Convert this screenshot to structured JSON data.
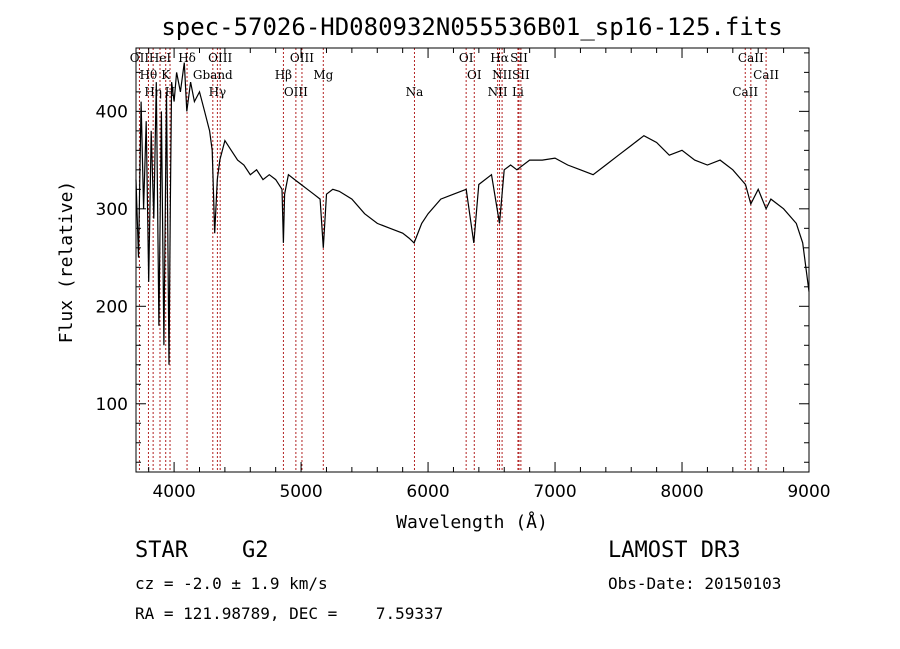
{
  "chart_data": {
    "type": "line",
    "title": "spec-57026-HD080932N055536B01_sp16-125.fits",
    "xlabel": "Wavelength (Å)",
    "ylabel": "Flux (relative)",
    "xlim": [
      3700,
      9000
    ],
    "ylim": [
      30,
      465
    ],
    "xticks": [
      4000,
      5000,
      6000,
      7000,
      8000,
      9000
    ],
    "yticks": [
      100,
      200,
      300,
      400
    ],
    "grid": false,
    "legend": "none",
    "series": [
      {
        "name": "flux",
        "x": [
          3700,
          3720,
          3740,
          3760,
          3780,
          3800,
          3820,
          3840,
          3860,
          3880,
          3900,
          3920,
          3940,
          3960,
          3970,
          3980,
          4000,
          4020,
          4050,
          4080,
          4100,
          4130,
          4160,
          4200,
          4240,
          4280,
          4300,
          4320,
          4340,
          4360,
          4400,
          4450,
          4500,
          4550,
          4600,
          4650,
          4700,
          4750,
          4800,
          4850,
          4861,
          4870,
          4900,
          4950,
          5000,
          5050,
          5100,
          5150,
          5175,
          5200,
          5250,
          5300,
          5400,
          5500,
          5600,
          5700,
          5800,
          5850,
          5890,
          5950,
          6000,
          6100,
          6200,
          6300,
          6360,
          6400,
          6500,
          6563,
          6600,
          6650,
          6700,
          6800,
          6900,
          7000,
          7100,
          7200,
          7300,
          7400,
          7500,
          7600,
          7700,
          7800,
          7900,
          8000,
          8100,
          8200,
          8300,
          8400,
          8500,
          8542,
          8600,
          8662,
          8700,
          8800,
          8900,
          8950,
          9000
        ],
        "values": [
          330,
          250,
          410,
          300,
          390,
          225,
          380,
          290,
          430,
          180,
          400,
          160,
          420,
          140,
          300,
          430,
          410,
          440,
          420,
          450,
          400,
          430,
          410,
          420,
          400,
          380,
          360,
          275,
          330,
          350,
          370,
          360,
          350,
          345,
          335,
          340,
          330,
          335,
          330,
          320,
          265,
          315,
          335,
          330,
          325,
          320,
          315,
          310,
          260,
          315,
          320,
          318,
          310,
          295,
          285,
          280,
          275,
          270,
          265,
          285,
          295,
          310,
          315,
          320,
          265,
          325,
          335,
          285,
          340,
          345,
          340,
          350,
          350,
          352,
          345,
          340,
          335,
          345,
          355,
          365,
          375,
          368,
          355,
          360,
          350,
          345,
          350,
          340,
          325,
          305,
          320,
          300,
          310,
          300,
          285,
          265,
          215
        ]
      }
    ],
    "line_marks": [
      {
        "name": "OII",
        "x": 3727
      },
      {
        "name": "Hθ",
        "x": 3798
      },
      {
        "name": "Hη",
        "x": 3835
      },
      {
        "name": "HeI",
        "x": 3889
      },
      {
        "name": "K",
        "x": 3934
      },
      {
        "name": "H",
        "x": 3968
      },
      {
        "name": "Hδ",
        "x": 4102
      },
      {
        "name": "Gband",
        "x": 4305
      },
      {
        "name": "Hγ",
        "x": 4341
      },
      {
        "name": "OIII",
        "x": 4363
      },
      {
        "name": "Hβ",
        "x": 4861
      },
      {
        "name": "OIII",
        "x": 4959
      },
      {
        "name": "OIII",
        "x": 5007
      },
      {
        "name": "Mg",
        "x": 5175
      },
      {
        "name": "Na",
        "x": 5893
      },
      {
        "name": "OI",
        "x": 6300
      },
      {
        "name": "OI",
        "x": 6364
      },
      {
        "name": "NII",
        "x": 6548
      },
      {
        "name": "Hα",
        "x": 6563
      },
      {
        "name": "NII",
        "x": 6583
      },
      {
        "name": "Li",
        "x": 6708
      },
      {
        "name": "SII",
        "x": 6716
      },
      {
        "name": "SII",
        "x": 6731
      },
      {
        "name": "CaII",
        "x": 8498
      },
      {
        "name": "CaII",
        "x": 8542
      },
      {
        "name": "CaII",
        "x": 8662
      }
    ]
  },
  "info": {
    "object_class": "STAR",
    "subclass": "G2",
    "survey": "LAMOST DR3",
    "redshift": "cz = -2.0 ± 1.9 km/s",
    "obs_date": "Obs-Date: 20150103",
    "coords": "RA = 121.98789, DEC =    7.59337"
  }
}
